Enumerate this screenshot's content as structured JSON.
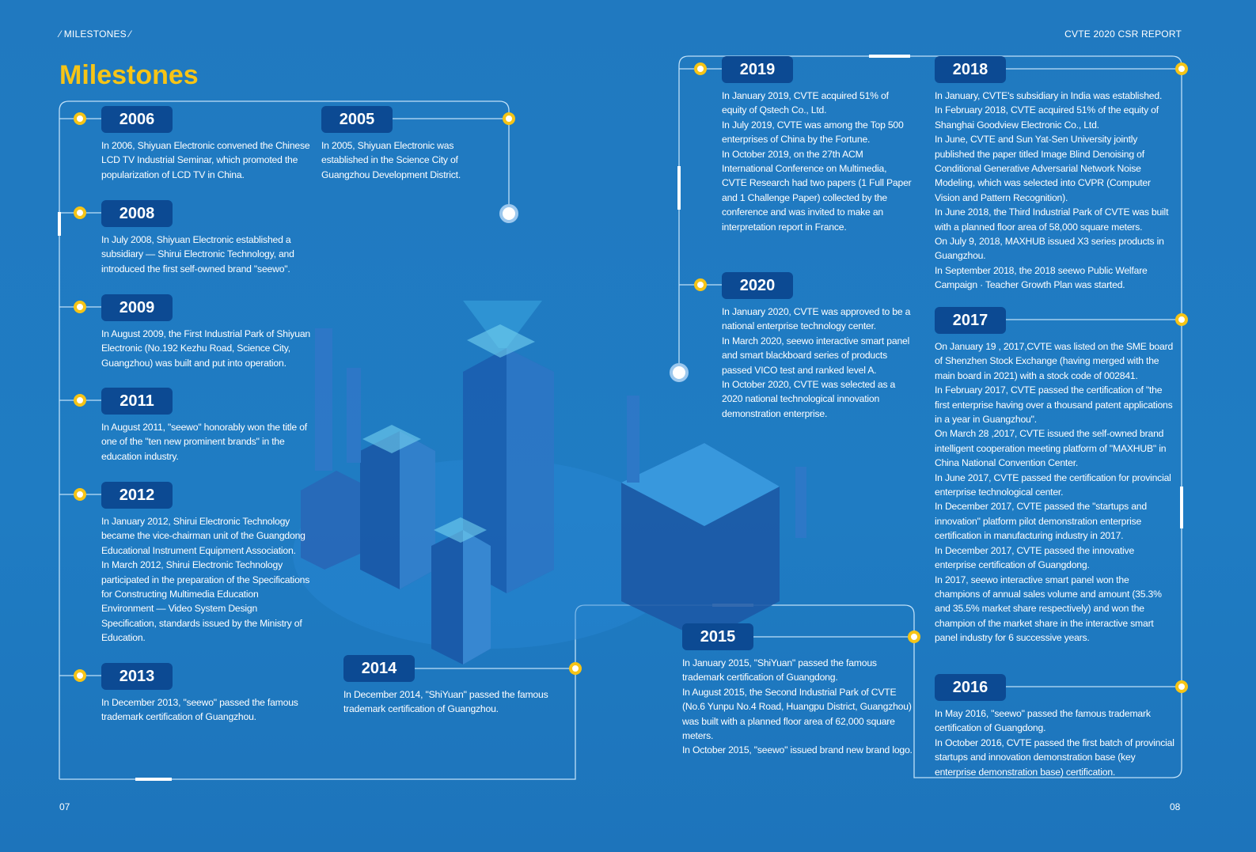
{
  "header": {
    "section": "⁄ MILESTONES ⁄",
    "report": "CVTE 2020 CSR REPORT"
  },
  "title": "Milestones",
  "colors": {
    "accent": "#f6c416",
    "badge": "#0c4a93",
    "background": "#1f7cc3"
  },
  "milestones": {
    "y2006": {
      "year": "2006",
      "items": [
        "In 2006, Shiyuan Electronic convened the Chinese LCD TV Industrial Seminar, which promoted the popularization of LCD TV in China."
      ]
    },
    "y2005": {
      "year": "2005",
      "items": [
        "In 2005, Shiyuan Electronic was established in the Science City of Guangzhou Development District."
      ]
    },
    "y2008": {
      "year": "2008",
      "items": [
        "In July 2008, Shiyuan Electronic established a subsidiary — Shirui Electronic Technology, and introduced the first self-owned brand \"seewo\"."
      ]
    },
    "y2009": {
      "year": "2009",
      "items": [
        "In August 2009, the First Industrial Park of Shiyuan Electronic (No.192 Kezhu Road, Science City, Guangzhou) was built and put into operation."
      ]
    },
    "y2011": {
      "year": "2011",
      "items": [
        "In August 2011, \"seewo\" honorably won the title of one of the \"ten new prominent brands\" in the education industry."
      ]
    },
    "y2012": {
      "year": "2012",
      "items": [
        "In January 2012, Shirui Electronic Technology became the vice-chairman unit of the Guangdong Educational Instrument Equipment Association.",
        "In March 2012, Shirui Electronic Technology participated in the preparation of the Specifications for Constructing Multimedia Education Environment — Video System Design Specification, standards issued by the Ministry of Education."
      ]
    },
    "y2013": {
      "year": "2013",
      "items": [
        "In December 2013, \"seewo\" passed the famous trademark certification of Guangzhou."
      ]
    },
    "y2014": {
      "year": "2014",
      "items": [
        "In December 2014, \"ShiYuan\" passed the famous trademark certification of Guangzhou."
      ]
    },
    "y2015": {
      "year": "2015",
      "items": [
        "In January 2015, \"ShiYuan\" passed the famous trademark certification of Guangdong.",
        "In August 2015, the Second Industrial Park of CVTE (No.6 Yunpu No.4 Road, Huangpu District, Guangzhou) was built with a planned floor area of 62,000 square meters.",
        "In October 2015, \"seewo\" issued brand new brand logo."
      ]
    },
    "y2019": {
      "year": "2019",
      "items": [
        "In January 2019, CVTE acquired 51% of equity of Qstech Co., Ltd.",
        "In July 2019, CVTE was among the Top 500 enterprises of China by the Fortune.",
        "In October 2019, on the 27th ACM International Conference on Multimedia, CVTE Research had two papers (1 Full Paper and 1 Challenge Paper) collected by the conference and was invited to make an interpretation report in France."
      ]
    },
    "y2020": {
      "year": "2020",
      "items": [
        "In January 2020, CVTE was approved to be a national enterprise technology center.",
        "In March 2020, seewo interactive smart panel and smart blackboard series of products passed VICO test and ranked level A.",
        "In October 2020, CVTE was selected as a 2020 national technological innovation demonstration enterprise."
      ]
    },
    "y2018": {
      "year": "2018",
      "items": [
        "In January, CVTE's subsidiary in India was established.",
        "In February 2018, CVTE acquired 51% of the equity of Shanghai Goodview Electronic Co., Ltd.",
        "In June, CVTE and Sun Yat-Sen University jointly published the paper titled Image Blind Denoising of Conditional Generative Adversarial Network Noise Modeling, which was selected into CVPR (Computer Vision and Pattern Recognition).",
        "In June 2018, the Third Industrial Park of CVTE was built with a planned floor area of 58,000 square meters.",
        "On July 9, 2018, MAXHUB issued X3 series products in Guangzhou.",
        "In September 2018, the 2018 seewo Public Welfare Campaign · Teacher Growth Plan was started."
      ]
    },
    "y2017": {
      "year": "2017",
      "items": [
        "On January 19 , 2017,CVTE was listed on the SME board of Shenzhen Stock Exchange (having merged with the main board in 2021) with a stock code of 002841.",
        "In February 2017, CVTE passed the certification of \"the first enterprise having over a thousand patent applications in a year in Guangzhou\".",
        "On March 28 ,2017, CVTE issued the self-owned brand intelligent cooperation meeting platform of \"MAXHUB\" in China National Convention Center.",
        "In June 2017, CVTE passed the certification for provincial enterprise technological center.",
        "In December 2017, CVTE passed the \"startups and innovation\" platform pilot demonstration enterprise certification in manufacturing industry in 2017.",
        "In December 2017, CVTE passed the innovative enterprise certification of Guangdong.",
        "In 2017, seewo interactive smart panel won the champions of annual sales volume and amount (35.3% and 35.5% market share respectively) and won the champion of the market share in the interactive smart panel industry for 6 successive years."
      ]
    },
    "y2016": {
      "year": "2016",
      "items": [
        "In May 2016, \"seewo\" passed the famous trademark certification of Guangdong.",
        "In October 2016, CVTE passed the first batch of provincial startups and innovation demonstration base (key enterprise demonstration base) certification."
      ]
    }
  },
  "pages": {
    "left": "07",
    "right": "08"
  }
}
